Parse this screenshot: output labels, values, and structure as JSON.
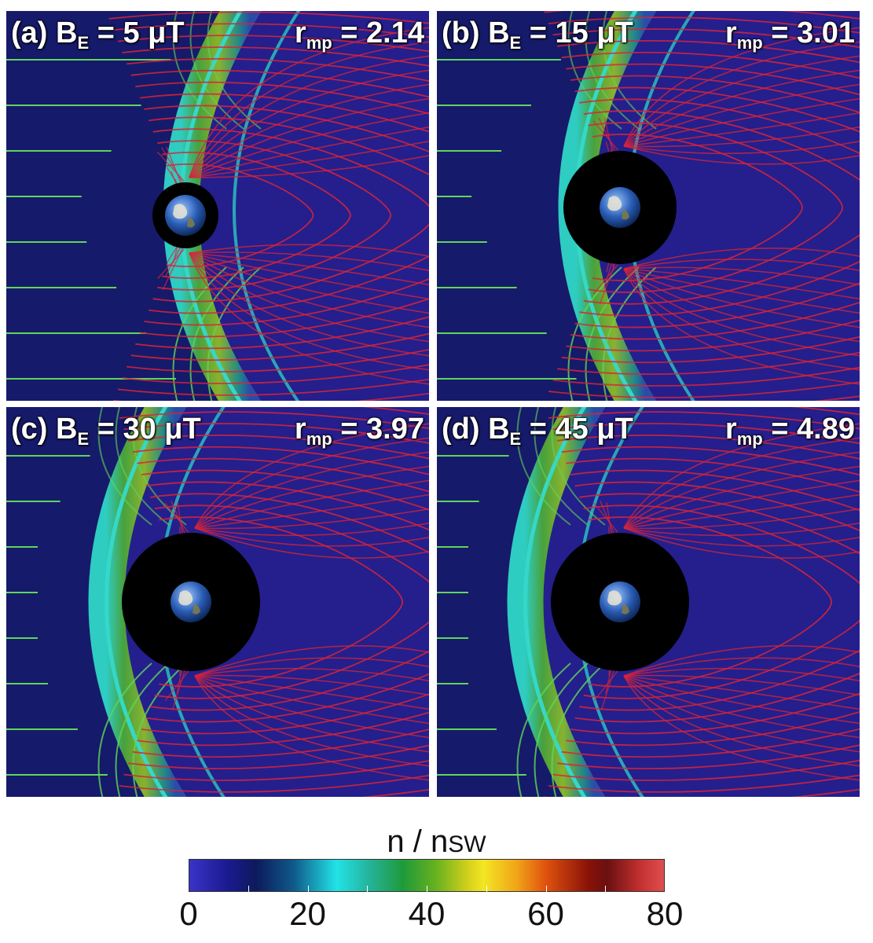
{
  "figure": {
    "panels": [
      {
        "id": "a",
        "label": "(a)",
        "be_label": "B",
        "be_sub": "E",
        "be_value": "= 5 μT",
        "rmp_label": "r",
        "rmp_sub": "mp",
        "rmp_value": "= 2.14"
      },
      {
        "id": "b",
        "label": "(b)",
        "be_label": "B",
        "be_sub": "E",
        "be_value": "= 15 μT",
        "rmp_label": "r",
        "rmp_sub": "mp",
        "rmp_value": "= 3.01"
      },
      {
        "id": "c",
        "label": "(c)",
        "be_label": "B",
        "be_sub": "E",
        "be_value": "= 30 μT",
        "rmp_label": "r",
        "rmp_sub": "mp",
        "rmp_value": "= 3.97"
      },
      {
        "id": "d",
        "label": "(d)",
        "be_label": "B",
        "be_sub": "E",
        "be_value": "= 45 μT",
        "rmp_label": "r",
        "rmp_sub": "mp",
        "rmp_value": "= 4.89"
      }
    ],
    "colorbar": {
      "title_main": "n / n",
      "title_sub": "SW",
      "ticks": [
        "0",
        "20",
        "40",
        "60",
        "80"
      ],
      "min": 0,
      "max": 80
    },
    "colors": {
      "background": "#241f8c",
      "solar_wind": "#161a6a",
      "field_line_open": "#5fd65a",
      "field_line_closed": "#d8243a",
      "sheath": "#3fbf5a",
      "bow_shock_edge": "#35d8c8",
      "planet_ocean": "#2a5db5"
    }
  }
}
